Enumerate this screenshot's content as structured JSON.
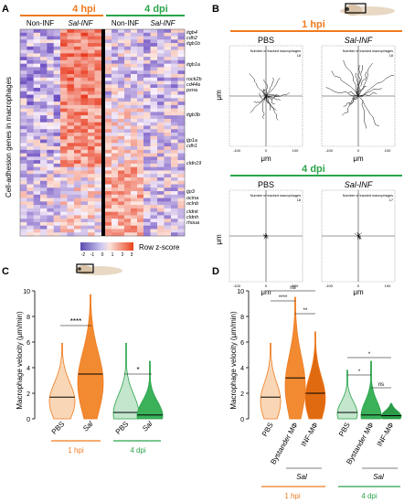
{
  "colors": {
    "orange": "#f07a1e",
    "green": "#2aa44a",
    "orange_light": "#f6c7a0",
    "green_light": "#b6e0c0"
  },
  "panel_a": {
    "letter": "A",
    "time_1hpi": "4 hpi",
    "time_4dpi": "4 dpi",
    "cols": [
      "Non-INF",
      "Sal-INF",
      "Non-INF",
      "Sal-INF"
    ],
    "ylabel": "Cell-adhesion genes in macrophages",
    "genes": [
      "itgb4",
      "cdh2",
      "itgb1b",
      "itgb1a",
      "rock2b",
      "cd44a",
      "pxna",
      "itgb3b",
      "tjp1a",
      "cdh1",
      "cldn19",
      "tjp3",
      "ocina",
      "oclnb",
      "cldnk",
      "cldnh",
      "rhoua"
    ],
    "legend_label": "Row z-score",
    "legend_ticks": [
      "-2",
      "-1",
      "0",
      "1",
      "2",
      "3"
    ]
  },
  "panel_b": {
    "letter": "B",
    "time_top": "1 hpi",
    "time_bottom": "4 dpi",
    "pbs": "PBS",
    "sal_inf": "Sal-INF",
    "axis_unit": "μm",
    "tracked_label": "Number of tracked macrophages",
    "counts": [
      "18",
      "18",
      "18",
      "17"
    ],
    "ticks": [
      "-100",
      "0",
      "100"
    ]
  },
  "panel_c": {
    "letter": "C",
    "ylabel": "Macrophage velocity (μm/min)",
    "yticks": [
      "0",
      "2",
      "4",
      "6",
      "8",
      "10"
    ],
    "sig_1": "****",
    "sig_2": "*",
    "groups": [
      "PBS",
      "Sal",
      "PBS",
      "Sal"
    ],
    "time_1": "1 hpi",
    "time_2": "4 dpi"
  },
  "panel_d": {
    "letter": "D",
    "ylabel": "Macrophage velocity (μm/min)",
    "yticks": [
      "0",
      "2",
      "4",
      "6",
      "8",
      "10"
    ],
    "groups": [
      "PBS",
      "Bystander MΦ",
      "INF-MΦ",
      "PBS",
      "Bystander MΦ",
      "INF-MΦ"
    ],
    "sig_top": [
      "ns",
      "****",
      "**"
    ],
    "sig_bottom": [
      "*",
      "*",
      "ns"
    ],
    "sal": "Sal",
    "time_1": "1 hpi",
    "time_2": "4 dpi"
  },
  "chart_data": [
    {
      "type": "violin",
      "panel": "C",
      "categories": [
        "PBS 1 hpi",
        "Sal 1 hpi",
        "PBS 4 dpi",
        "Sal 4 dpi"
      ],
      "medians": [
        1.7,
        3.5,
        0.5,
        0.3
      ],
      "max": [
        5.9,
        9.7,
        5.9,
        4.5
      ],
      "ylim": [
        0,
        10
      ],
      "ylabel": "Macrophage velocity (μm/min)"
    },
    {
      "type": "violin",
      "panel": "D",
      "categories": [
        "PBS 1 hpi",
        "Bystander MΦ 1 hpi",
        "INF-MΦ 1 hpi",
        "PBS 4 dpi",
        "Bystander MΦ 4 dpi",
        "INF-MΦ 4 dpi"
      ],
      "medians": [
        1.7,
        3.2,
        2.0,
        0.5,
        0.3,
        0.25
      ],
      "max": [
        5.9,
        9.5,
        6.8,
        3.8,
        4.5,
        1.2
      ],
      "ylim": [
        0,
        10
      ],
      "ylabel": "Macrophage velocity (μm/min)"
    }
  ]
}
